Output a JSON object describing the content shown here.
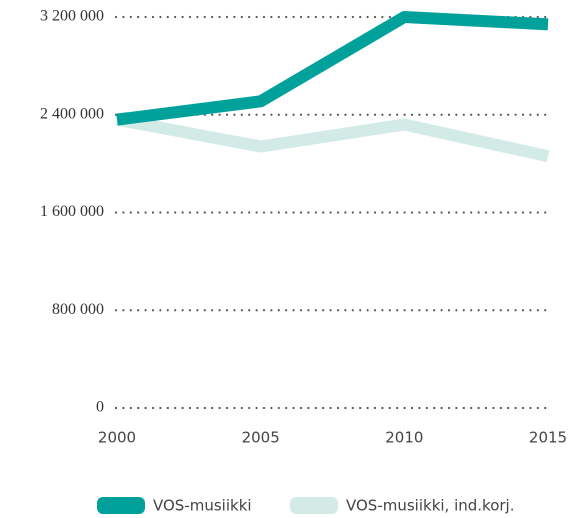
{
  "chart_data": {
    "type": "line",
    "x": [
      2000,
      2005,
      2010,
      2015
    ],
    "series": [
      {
        "name": "VOS-musiikki",
        "color": "#00a19a",
        "values": [
          2360000,
          2510000,
          3200000,
          3140000
        ]
      },
      {
        "name": "VOS-musiikki, ind.korj.",
        "color": "#d3ebe7",
        "values": [
          2360000,
          2140000,
          2320000,
          2060000
        ]
      }
    ],
    "xlim": [
      2000,
      2015
    ],
    "xticks": [
      2000,
      2005,
      2010,
      2015
    ],
    "ylim": [
      0,
      3200000
    ],
    "yticks": [
      0,
      {
        "value": 800000,
        "label": "800 000"
      },
      {
        "value": 1600000,
        "label": "1 600 000"
      },
      {
        "value": 2400000,
        "label": "2 400 000"
      },
      {
        "value": 3200000,
        "label": "3 200 000"
      }
    ],
    "grid": true,
    "legend": "bottom"
  }
}
